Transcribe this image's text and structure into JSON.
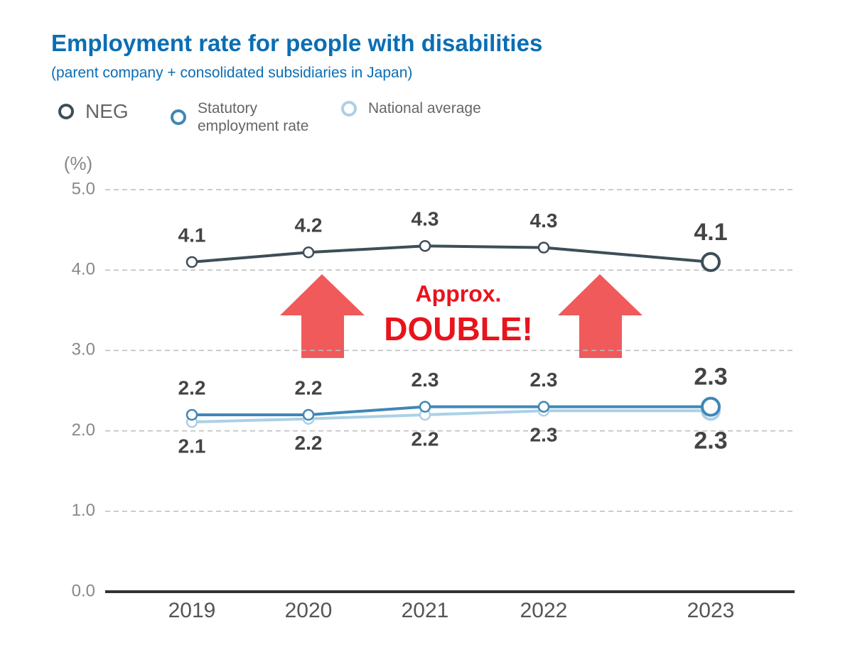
{
  "chart_data": {
    "type": "line",
    "title": "Employment rate for people with disabilities",
    "subtitle": "(parent company + consolidated subsidiaries in Japan)",
    "y_label": "(%)",
    "categories": [
      "2019",
      "2020",
      "2021",
      "2022",
      "2023"
    ],
    "series": [
      {
        "name": "NEG",
        "color": "#3d4e57",
        "values": [
          4.1,
          4.22,
          4.3,
          4.28,
          4.1
        ],
        "value_labels": [
          "4.1",
          "4.2",
          "4.3",
          "4.3",
          "4.1"
        ],
        "label_position": "above"
      },
      {
        "name": "Statutory employment rate",
        "color": "#3f87b6",
        "values": [
          2.2,
          2.2,
          2.3,
          2.3,
          2.3
        ],
        "label_position": "above"
      },
      {
        "name": "National average",
        "color": "#abd0e6",
        "values": [
          2.11,
          2.15,
          2.2,
          2.25,
          2.25
        ],
        "value_labels": [
          "2.1",
          "2.2",
          "2.2",
          "2.3",
          "2.3"
        ],
        "label_position": "below"
      }
    ],
    "ylim": [
      0,
      5
    ],
    "yticks": [
      {
        "value": 0,
        "label": "0.0"
      },
      {
        "value": 1,
        "label": "1.0"
      },
      {
        "value": 2,
        "label": "2.0"
      },
      {
        "value": 3,
        "label": "3.0"
      },
      {
        "value": 4,
        "label": "4.0"
      },
      {
        "value": 5,
        "label": "5.0"
      }
    ],
    "grid": true,
    "annotations": [
      "Approx.",
      "DOUBLE!"
    ],
    "annotation_color": "#e8141c"
  }
}
